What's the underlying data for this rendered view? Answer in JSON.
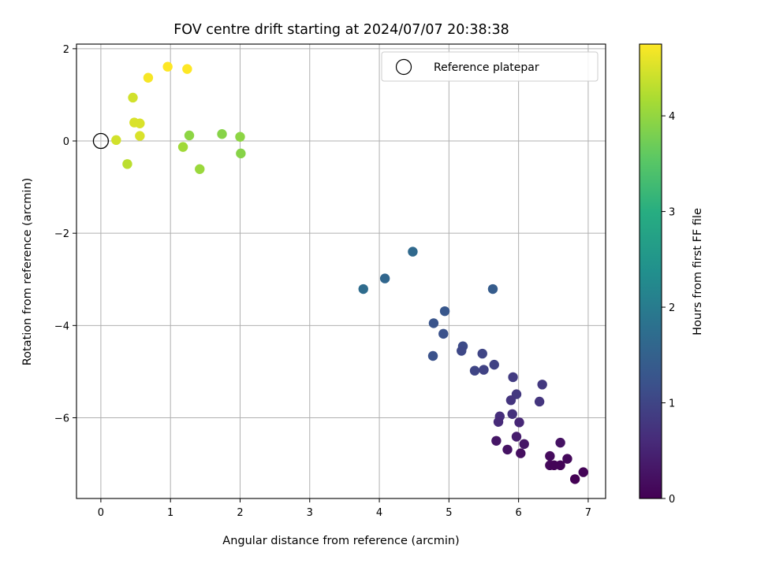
{
  "chart_data": {
    "type": "scatter",
    "title": "FOV centre drift starting at 2024/07/07 20:38:38",
    "xlabel": "Angular distance from reference (arcmin)",
    "ylabel": "Rotation from reference (arcmin)",
    "xlim": [
      -0.35,
      7.25
    ],
    "ylim": [
      -7.75,
      2.1
    ],
    "xticks": [
      0,
      1,
      2,
      3,
      4,
      5,
      6,
      7
    ],
    "yticks": [
      2,
      0,
      -2,
      -4,
      -6
    ],
    "xtick_labels": [
      "0",
      "1",
      "2",
      "3",
      "4",
      "5",
      "6",
      "7"
    ],
    "ytick_labels": [
      "2",
      "0",
      "−2",
      "−4",
      "−6"
    ],
    "grid": true,
    "legend": {
      "placement": "top-right",
      "entries": [
        {
          "label": "Reference platepar",
          "marker": "open-circle"
        }
      ]
    },
    "reference_point": {
      "x": 0,
      "y": 0
    },
    "colorbar": {
      "label": "Hours from first FF file",
      "min": 0,
      "max": 4.75,
      "ticks": [
        0,
        1,
        2,
        3,
        4
      ],
      "tick_labels": [
        "0",
        "1",
        "2",
        "3",
        "4"
      ],
      "colormap": "viridis"
    },
    "points": [
      {
        "x": 0.22,
        "y": 0.02,
        "t": 4.45
      },
      {
        "x": 0.38,
        "y": -0.5,
        "t": 4.3
      },
      {
        "x": 0.46,
        "y": 0.94,
        "t": 4.45
      },
      {
        "x": 0.48,
        "y": 0.4,
        "t": 4.5
      },
      {
        "x": 0.56,
        "y": 0.38,
        "t": 4.5
      },
      {
        "x": 0.56,
        "y": 0.11,
        "t": 4.5
      },
      {
        "x": 0.68,
        "y": 1.37,
        "t": 4.7
      },
      {
        "x": 0.96,
        "y": 1.61,
        "t": 4.75
      },
      {
        "x": 1.24,
        "y": 1.56,
        "t": 4.75
      },
      {
        "x": 1.18,
        "y": -0.13,
        "t": 4.1
      },
      {
        "x": 1.27,
        "y": 0.12,
        "t": 3.95
      },
      {
        "x": 1.42,
        "y": -0.61,
        "t": 4.05
      },
      {
        "x": 1.74,
        "y": 0.15,
        "t": 3.9
      },
      {
        "x": 2.0,
        "y": 0.09,
        "t": 3.95
      },
      {
        "x": 2.01,
        "y": -0.27,
        "t": 3.9
      },
      {
        "x": 3.77,
        "y": -3.21,
        "t": 1.7
      },
      {
        "x": 4.08,
        "y": -2.98,
        "t": 1.6
      },
      {
        "x": 4.48,
        "y": -2.4,
        "t": 1.65
      },
      {
        "x": 5.63,
        "y": -3.21,
        "t": 1.4
      },
      {
        "x": 4.94,
        "y": -3.69,
        "t": 1.3
      },
      {
        "x": 4.78,
        "y": -3.95,
        "t": 1.25
      },
      {
        "x": 4.92,
        "y": -4.18,
        "t": 1.2
      },
      {
        "x": 4.77,
        "y": -4.66,
        "t": 1.2
      },
      {
        "x": 5.2,
        "y": -4.45,
        "t": 1.1
      },
      {
        "x": 5.18,
        "y": -4.55,
        "t": 1.05
      },
      {
        "x": 5.48,
        "y": -4.61,
        "t": 1.0
      },
      {
        "x": 5.65,
        "y": -4.85,
        "t": 0.95
      },
      {
        "x": 5.37,
        "y": -4.98,
        "t": 1.0
      },
      {
        "x": 5.5,
        "y": -4.96,
        "t": 0.95
      },
      {
        "x": 5.92,
        "y": -5.12,
        "t": 0.85
      },
      {
        "x": 6.34,
        "y": -5.28,
        "t": 0.8
      },
      {
        "x": 5.97,
        "y": -5.49,
        "t": 0.8
      },
      {
        "x": 5.89,
        "y": -5.62,
        "t": 0.75
      },
      {
        "x": 6.3,
        "y": -5.65,
        "t": 0.75
      },
      {
        "x": 5.91,
        "y": -5.92,
        "t": 0.7
      },
      {
        "x": 5.73,
        "y": -5.97,
        "t": 0.65
      },
      {
        "x": 5.71,
        "y": -6.09,
        "t": 0.6
      },
      {
        "x": 6.01,
        "y": -6.1,
        "t": 0.55
      },
      {
        "x": 5.97,
        "y": -6.41,
        "t": 0.4
      },
      {
        "x": 5.68,
        "y": -6.5,
        "t": 0.3
      },
      {
        "x": 6.08,
        "y": -6.57,
        "t": 0.3
      },
      {
        "x": 6.6,
        "y": -6.54,
        "t": 0.25
      },
      {
        "x": 5.84,
        "y": -6.69,
        "t": 0.25
      },
      {
        "x": 6.03,
        "y": -6.77,
        "t": 0.2
      },
      {
        "x": 6.45,
        "y": -6.83,
        "t": 0.15
      },
      {
        "x": 6.7,
        "y": -6.89,
        "t": 0.1
      },
      {
        "x": 6.45,
        "y": -7.03,
        "t": 0.1
      },
      {
        "x": 6.51,
        "y": -7.03,
        "t": 0.05
      },
      {
        "x": 6.6,
        "y": -7.03,
        "t": 0.05
      },
      {
        "x": 6.93,
        "y": -7.18,
        "t": 0.05
      },
      {
        "x": 6.81,
        "y": -7.33,
        "t": 0.0
      }
    ]
  }
}
